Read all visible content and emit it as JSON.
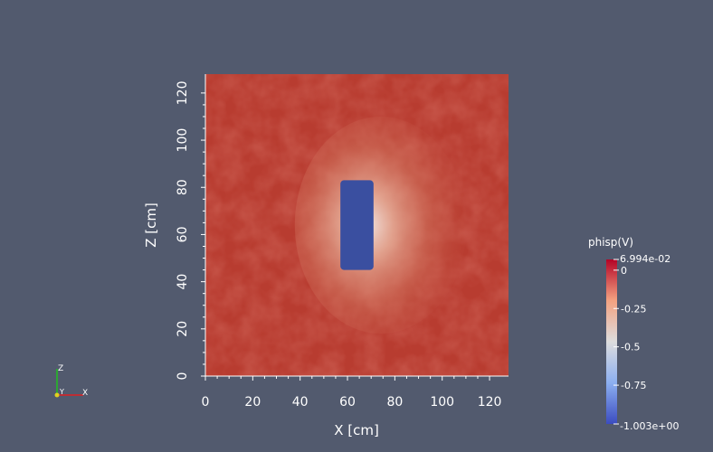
{
  "plot": {
    "x_axis_title": "X [cm]",
    "y_axis_title": "Z [cm]",
    "x_ticks": [
      "0",
      "20",
      "40",
      "60",
      "80",
      "100",
      "120"
    ],
    "y_ticks": [
      "0",
      "20",
      "40",
      "60",
      "80",
      "100",
      "120"
    ],
    "axis_range": [
      0,
      128
    ],
    "field_color": "#b83c30",
    "conductor_color": "#3a4fa0",
    "conductor_extent": {
      "x": [
        57,
        71
      ],
      "z": [
        45,
        83
      ]
    }
  },
  "colorbar": {
    "title": "phisp(V)",
    "max_label": "6.994e-02",
    "min_label": "-1.003e+00",
    "tick_labels": [
      "0",
      "-0.25",
      "-0.5",
      "-0.75"
    ],
    "tick_values": [
      0,
      -0.25,
      -0.5,
      -0.75
    ],
    "range": [
      -1.003,
      0.06994
    ],
    "colors": [
      "#3b4cc0",
      "#8caff0",
      "#dddddd",
      "#f3a281",
      "#b40426"
    ]
  },
  "orientation_axes": {
    "z_label": "Z",
    "y_label": "Y",
    "x_label": "X",
    "colors": {
      "x": "#e02020",
      "y": "#e0d020",
      "z": "#20c020"
    }
  }
}
